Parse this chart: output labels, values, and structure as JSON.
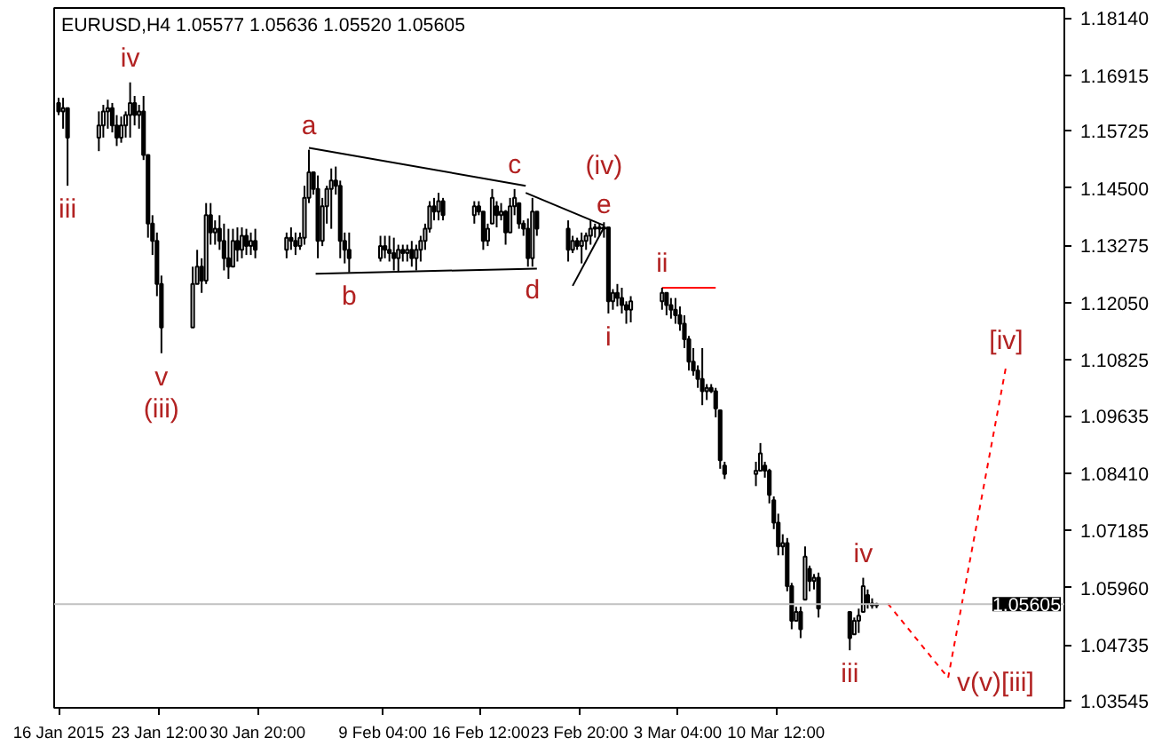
{
  "chart_data": {
    "type": "candlestick",
    "title": "EURUSD,H4  1.05577 1.05636 1.05520 1.05605",
    "x": [
      "2015-01-16T00:00",
      "2015-01-16T08:00",
      "2015-01-16T16:00",
      "2015-01-19T00:00",
      "2015-01-19T08:00",
      "2015-01-19T16:00",
      "2015-01-20T00:00",
      "2015-01-20T08:00",
      "2015-01-20T16:00",
      "2015-01-21T00:00",
      "2015-01-21T08:00",
      "2015-01-21T16:00",
      "2015-01-22T00:00",
      "2015-01-22T08:00",
      "2015-01-22T16:00",
      "2015-01-23T00:00",
      "2015-01-23T08:00",
      "2015-01-23T16:00",
      "2015-01-26T00:00",
      "2015-01-26T08:00",
      "2015-01-26T16:00",
      "2015-01-27T00:00",
      "2015-01-27T08:00",
      "2015-01-27T16:00",
      "2015-01-28T00:00",
      "2015-01-28T08:00",
      "2015-01-28T16:00",
      "2015-01-29T00:00",
      "2015-01-29T08:00",
      "2015-01-29T16:00",
      "2015-01-30T00:00",
      "2015-01-30T08:00",
      "2015-01-30T16:00",
      "2015-02-02T00:00",
      "2015-02-02T08:00",
      "2015-02-02T16:00",
      "2015-02-03T00:00",
      "2015-02-03T08:00",
      "2015-02-03T16:00",
      "2015-02-04T00:00",
      "2015-02-04T08:00",
      "2015-02-04T16:00",
      "2015-02-05T00:00",
      "2015-02-05T08:00",
      "2015-02-05T16:00",
      "2015-02-06T00:00",
      "2015-02-06T08:00",
      "2015-02-06T16:00",
      "2015-02-09T00:00",
      "2015-02-09T08:00",
      "2015-02-09T16:00",
      "2015-02-10T00:00",
      "2015-02-10T08:00",
      "2015-02-10T16:00",
      "2015-02-11T00:00",
      "2015-02-11T08:00",
      "2015-02-11T16:00",
      "2015-02-12T00:00",
      "2015-02-12T08:00",
      "2015-02-12T16:00",
      "2015-02-13T00:00",
      "2015-02-13T08:00",
      "2015-02-13T16:00",
      "2015-02-16T00:00",
      "2015-02-16T08:00",
      "2015-02-16T16:00",
      "2015-02-17T00:00",
      "2015-02-17T08:00",
      "2015-02-17T16:00",
      "2015-02-18T00:00",
      "2015-02-18T08:00",
      "2015-02-18T16:00",
      "2015-02-19T00:00",
      "2015-02-19T08:00",
      "2015-02-19T16:00",
      "2015-02-20T00:00",
      "2015-02-20T08:00",
      "2015-02-20T16:00",
      "2015-02-23T00:00",
      "2015-02-23T08:00",
      "2015-02-23T16:00",
      "2015-02-24T00:00",
      "2015-02-24T08:00",
      "2015-02-24T16:00",
      "2015-02-25T00:00",
      "2015-02-25T08:00",
      "2015-02-25T16:00",
      "2015-02-26T00:00",
      "2015-02-26T08:00",
      "2015-02-26T16:00",
      "2015-02-27T00:00",
      "2015-02-27T08:00",
      "2015-02-27T16:00",
      "2015-03-02T00:00",
      "2015-03-02T08:00",
      "2015-03-02T16:00",
      "2015-03-03T00:00",
      "2015-03-03T08:00",
      "2015-03-03T16:00",
      "2015-03-04T00:00",
      "2015-03-04T08:00",
      "2015-03-04T16:00",
      "2015-03-05T00:00",
      "2015-03-05T08:00",
      "2015-03-05T16:00",
      "2015-03-06T00:00",
      "2015-03-06T08:00",
      "2015-03-06T16:00",
      "2015-03-09T00:00",
      "2015-03-09T08:00",
      "2015-03-09T16:00",
      "2015-03-10T00:00",
      "2015-03-10T08:00",
      "2015-03-10T16:00",
      "2015-03-11T00:00",
      "2015-03-11T08:00",
      "2015-03-11T16:00",
      "2015-03-12T00:00",
      "2015-03-12T08:00",
      "2015-03-12T16:00",
      "2015-03-13T00:00",
      "2015-03-13T08:00",
      "2015-03-13T16:00",
      "2015-03-16T00:00",
      "2015-03-16T08:00",
      "2015-03-16T16:00",
      "2015-03-17T00:00",
      "2015-03-17T08:00",
      "2015-03-17T16:00",
      "2015-03-18T00:00"
    ],
    "ohlc": [
      [
        1.1632,
        1.1643,
        1.1606,
        1.1614
      ],
      [
        1.1614,
        1.1643,
        1.1577,
        1.1621
      ],
      [
        1.1621,
        1.1621,
        1.1455,
        1.1558
      ],
      [
        1.1558,
        1.1614,
        1.1529,
        1.1584
      ],
      [
        1.1584,
        1.1628,
        1.1558,
        1.1614
      ],
      [
        1.1614,
        1.1639,
        1.1577,
        1.1621
      ],
      [
        1.1621,
        1.1632,
        1.1569,
        1.1584
      ],
      [
        1.1584,
        1.1606,
        1.154,
        1.1558
      ],
      [
        1.1558,
        1.1603,
        1.1547,
        1.1584
      ],
      [
        1.1584,
        1.1614,
        1.1558,
        1.1606
      ],
      [
        1.1606,
        1.1676,
        1.1558,
        1.1632
      ],
      [
        1.1632,
        1.1647,
        1.1584,
        1.1606
      ],
      [
        1.1606,
        1.1628,
        1.1577,
        1.1614
      ],
      [
        1.1614,
        1.1647,
        1.151,
        1.1521
      ],
      [
        1.1521,
        1.1521,
        1.1344,
        1.1374
      ],
      [
        1.1374,
        1.1392,
        1.1307,
        1.1337
      ],
      [
        1.1337,
        1.1355,
        1.1219,
        1.1245
      ],
      [
        1.1245,
        1.1263,
        1.1097,
        1.1152
      ],
      [
        1.1152,
        1.1282,
        1.1152,
        1.1245
      ],
      [
        1.1245,
        1.1318,
        1.1245,
        1.1282
      ],
      [
        1.1282,
        1.13,
        1.1226,
        1.1252
      ],
      [
        1.1252,
        1.1418,
        1.1245,
        1.1392
      ],
      [
        1.1392,
        1.1418,
        1.1329,
        1.1355
      ],
      [
        1.1355,
        1.1381,
        1.1329,
        1.1363
      ],
      [
        1.1363,
        1.1392,
        1.1318,
        1.1337
      ],
      [
        1.1337,
        1.1374,
        1.1274,
        1.13
      ],
      [
        1.13,
        1.1363,
        1.1256,
        1.1282
      ],
      [
        1.1282,
        1.1363,
        1.1282,
        1.1337
      ],
      [
        1.1337,
        1.1366,
        1.1293,
        1.1318
      ],
      [
        1.1318,
        1.1366,
        1.13,
        1.1348
      ],
      [
        1.1348,
        1.1363,
        1.1307,
        1.1326
      ],
      [
        1.1326,
        1.1355,
        1.1307,
        1.1337
      ],
      [
        1.1337,
        1.1363,
        1.13,
        1.1318
      ],
      [
        1.1318,
        1.1355,
        1.13,
        1.1344
      ],
      [
        1.1344,
        1.1366,
        1.1318,
        1.1337
      ],
      [
        1.1337,
        1.1355,
        1.1307,
        1.1326
      ],
      [
        1.1326,
        1.1355,
        1.1318,
        1.1344
      ],
      [
        1.1344,
        1.1455,
        1.1329,
        1.1429
      ],
      [
        1.1429,
        1.1532,
        1.1418,
        1.1484
      ],
      [
        1.1484,
        1.1484,
        1.1436,
        1.1448
      ],
      [
        1.1448,
        1.1477,
        1.13,
        1.1337
      ],
      [
        1.1337,
        1.1429,
        1.1326,
        1.1411
      ],
      [
        1.1411,
        1.1455,
        1.1374,
        1.1448
      ],
      [
        1.1448,
        1.1492,
        1.1363,
        1.1466
      ],
      [
        1.1466,
        1.1496,
        1.1436,
        1.1455
      ],
      [
        1.1455,
        1.1466,
        1.13,
        1.1337
      ],
      [
        1.1337,
        1.1355,
        1.1289,
        1.1318
      ],
      [
        1.1318,
        1.1355,
        1.127,
        1.13
      ],
      [
        1.13,
        1.1348,
        1.1293,
        1.1326
      ],
      [
        1.1326,
        1.1348,
        1.13,
        1.1318
      ],
      [
        1.1318,
        1.1348,
        1.1293,
        1.1311
      ],
      [
        1.1311,
        1.1344,
        1.1274,
        1.13
      ],
      [
        1.13,
        1.1329,
        1.127,
        1.1318
      ],
      [
        1.1318,
        1.1329,
        1.1293,
        1.1311
      ],
      [
        1.1311,
        1.1329,
        1.1293,
        1.1318
      ],
      [
        1.1318,
        1.1337,
        1.1282,
        1.13
      ],
      [
        1.13,
        1.1329,
        1.1274,
        1.1318
      ],
      [
        1.1318,
        1.1348,
        1.1293,
        1.1337
      ],
      [
        1.1337,
        1.1374,
        1.1318,
        1.1363
      ],
      [
        1.1363,
        1.1422,
        1.1355,
        1.1411
      ],
      [
        1.1411,
        1.1429,
        1.1381,
        1.14
      ],
      [
        1.14,
        1.144,
        1.1381,
        1.1422
      ],
      [
        1.1422,
        1.1429,
        1.1381,
        1.1392
      ],
      [
        1.1392,
        1.1422,
        1.1374,
        1.1411
      ],
      [
        1.1411,
        1.1422,
        1.1392,
        1.14
      ],
      [
        1.14,
        1.14,
        1.1318,
        1.1337
      ],
      [
        1.1337,
        1.1374,
        1.1326,
        1.1363
      ],
      [
        1.1374,
        1.1448,
        1.1374,
        1.1429
      ],
      [
        1.1411,
        1.1422,
        1.1366,
        1.1392
      ],
      [
        1.1392,
        1.1418,
        1.1381,
        1.14
      ],
      [
        1.14,
        1.1403,
        1.1329,
        1.1355
      ],
      [
        1.1355,
        1.1429,
        1.1355,
        1.1411
      ],
      [
        1.1411,
        1.1448,
        1.1392,
        1.1429
      ],
      [
        1.1418,
        1.1418,
        1.1363,
        1.1374
      ],
      [
        1.1374,
        1.1381,
        1.1348,
        1.1363
      ],
      [
        1.1363,
        1.1385,
        1.1282,
        1.13
      ],
      [
        1.13,
        1.1429,
        1.1282,
        1.14
      ],
      [
        1.14,
        1.14,
        1.1348,
        1.1363
      ],
      [
        1.1363,
        1.1381,
        1.1293,
        1.1318
      ],
      [
        1.1318,
        1.1348,
        1.1311,
        1.1337
      ],
      [
        1.1337,
        1.1344,
        1.1318,
        1.1326
      ],
      [
        1.1326,
        1.1355,
        1.1289,
        1.1337
      ],
      [
        1.1337,
        1.1355,
        1.1318,
        1.1348
      ],
      [
        1.1348,
        1.1381,
        1.1329,
        1.1363
      ],
      [
        1.1363,
        1.1374,
        1.1344,
        1.1366
      ],
      [
        1.1366,
        1.1374,
        1.1348,
        1.1363
      ],
      [
        1.1363,
        1.1377,
        1.1344,
        1.1366
      ],
      [
        1.1366,
        1.1366,
        1.1182,
        1.1208
      ],
      [
        1.1208,
        1.1234,
        1.119,
        1.1226
      ],
      [
        1.1226,
        1.1245,
        1.1197,
        1.1215
      ],
      [
        1.1215,
        1.1237,
        1.1182,
        1.12
      ],
      [
        1.12,
        1.1208,
        1.116,
        1.119
      ],
      [
        1.119,
        1.1219,
        1.1163,
        1.1208
      ],
      [
        1.1208,
        1.1237,
        1.119,
        1.1226
      ],
      [
        1.1226,
        1.1226,
        1.1178,
        1.12
      ],
      [
        1.12,
        1.1215,
        1.1171,
        1.119
      ],
      [
        1.119,
        1.1215,
        1.116,
        1.1178
      ],
      [
        1.1178,
        1.1197,
        1.1145,
        1.116
      ],
      [
        1.116,
        1.1178,
        1.1108,
        1.1127
      ],
      [
        1.1127,
        1.1134,
        1.106,
        1.1079
      ],
      [
        1.1079,
        1.1108,
        1.1049,
        1.106
      ],
      [
        1.106,
        1.1071,
        1.1023,
        1.1042
      ],
      [
        1.1042,
        1.1108,
        1.0986,
        1.1016
      ],
      [
        1.1016,
        1.1031,
        1.0997,
        1.1023
      ],
      [
        1.1023,
        1.1031,
        1.1012,
        1.1016
      ],
      [
        1.1016,
        1.1023,
        1.096,
        1.0979
      ],
      [
        1.0975,
        1.0975,
        1.085,
        1.0868
      ],
      [
        1.0857,
        1.0865,
        1.0828,
        1.0839
      ],
      [
        1.0839,
        1.0865,
        1.0813,
        1.0846
      ],
      [
        1.0846,
        1.0905,
        1.0846,
        1.0883
      ],
      [
        1.0857,
        1.0865,
        1.0831,
        1.0846
      ],
      [
        1.0846,
        1.085,
        1.0776,
        1.0794
      ],
      [
        1.0783,
        1.0791,
        1.0721,
        1.0735
      ],
      [
        1.0735,
        1.0754,
        1.0665,
        1.0684
      ],
      [
        1.0684,
        1.071,
        1.0665,
        1.0691
      ],
      [
        1.0691,
        1.0702,
        1.0588,
        1.0599
      ],
      [
        1.0599,
        1.0606,
        1.0507,
        1.0525
      ],
      [
        1.0525,
        1.0555,
        1.0525,
        1.0544
      ],
      [
        1.0544,
        1.0555,
        1.0488,
        1.0507
      ],
      [
        1.057,
        1.0684,
        1.057,
        1.0662
      ],
      [
        1.0636,
        1.0643,
        1.0588,
        1.061
      ],
      [
        1.061,
        1.0625,
        1.0592,
        1.0617
      ],
      [
        1.0617,
        1.0628,
        1.0532,
        1.0551
      ],
      [
        1.0544,
        1.0544,
        1.0462,
        1.0488
      ],
      [
        1.0496,
        1.0532,
        1.0496,
        1.0525
      ],
      [
        1.0525,
        1.0551,
        1.0499,
        1.0536
      ],
      [
        1.0544,
        1.0617,
        1.0544,
        1.0599
      ],
      [
        1.058,
        1.0592,
        1.0551,
        1.0562
      ],
      [
        1.0562,
        1.0573,
        1.0551,
        1.0558
      ],
      [
        1.05577,
        1.05636,
        1.0552,
        1.05605
      ]
    ],
    "color": "#000000",
    "series": [
      {
        "type": "line",
        "color": "#000000",
        "line_style": "solid",
        "x": [
          "2015-02-03T16:00",
          "2015-02-19T20:00"
        ],
        "values": [
          1.1536,
          1.1455
        ]
      },
      {
        "type": "line",
        "color": "#000000",
        "line_style": "solid",
        "x": [
          "2015-02-19T20:00",
          "2015-02-25T16:00"
        ],
        "values": [
          1.144,
          1.137
        ]
      },
      {
        "type": "line",
        "color": "#000000",
        "line_style": "solid",
        "x": [
          "2015-02-04T04:00",
          "2015-02-20T16:00"
        ],
        "values": [
          1.1267,
          1.1278
        ]
      },
      {
        "type": "line",
        "color": "#000000",
        "line_style": "solid",
        "x": [
          "2015-02-23T08:00",
          "2015-02-25T16:00"
        ],
        "values": [
          1.1241,
          1.1366
        ]
      },
      {
        "type": "line",
        "color": "#ff0000",
        "line_style": "solid",
        "x": [
          "2015-03-02T00:00",
          "2015-03-06T00:00"
        ],
        "values": [
          1.1237,
          1.1237
        ]
      },
      {
        "type": "line",
        "color": "#ff0000",
        "line_style": "dashed",
        "x": [
          "2015-03-18T20:00",
          "2015-03-23T08:00",
          "2015-03-27T16:00"
        ],
        "values": [
          1.0562,
          1.0403,
          1.1071
        ]
      }
    ],
    "annotations": [
      {
        "text": "iv",
        "x": "2015-01-21T08:00",
        "y": 1.1676
      },
      {
        "text": "iii",
        "x": "2015-01-16T16:00",
        "y": 1.1455
      },
      {
        "text": "v",
        "x": "2015-01-23T16:00",
        "y": 1.1097
      },
      {
        "text": "(iii)",
        "x": "2015-01-23T16:00",
        "y": 1.1097
      },
      {
        "text": "a",
        "x": "2015-02-03T16:00",
        "y": 1.1532
      },
      {
        "text": "b",
        "x": "2015-02-06T16:00",
        "y": 1.127
      },
      {
        "text": "c",
        "x": "2015-02-19T00:00",
        "y": 1.1448
      },
      {
        "text": "d",
        "x": "2015-02-20T08:00",
        "y": 1.1282
      },
      {
        "text": "e",
        "x": "2015-02-25T16:00",
        "y": 1.1377
      },
      {
        "text": "(iv)",
        "x": "2015-02-25T16:00",
        "y": 1.1377
      },
      {
        "text": "i",
        "x": "2015-02-26T00:00",
        "y": 1.1182
      },
      {
        "text": "ii",
        "x": "2015-03-02T00:00",
        "y": 1.1237
      },
      {
        "text": "iv",
        "x": "2015-03-17T00:00",
        "y": 1.0617
      },
      {
        "text": "iii",
        "x": "2015-03-16T00:00",
        "y": 1.0462
      },
      {
        "text": "v(v)[iii]",
        "x": "2015-03-23T08:00",
        "y": 1.0403
      },
      {
        "text": "[iv]",
        "x": "2015-03-27T16:00",
        "y": 1.1071
      }
    ],
    "ref_lines": [
      {
        "axis": "y",
        "value": 1.05605,
        "label": "1.05605",
        "color": "#c0c0c0"
      }
    ],
    "xlim": [
      "2015-01-15T16:00",
      "2015-04-01T00:00"
    ],
    "xticks": [
      {
        "value": "2015-01-16T00:00",
        "label": "16 Jan 2015"
      },
      {
        "value": "2015-01-23T12:00",
        "label": "23 Jan 12:00"
      },
      {
        "value": "2015-01-30T20:00",
        "label": "30 Jan 20:00"
      },
      {
        "value": "2015-02-09T04:00",
        "label": "9 Feb 04:00"
      },
      {
        "value": "2015-02-16T12:00",
        "label": "16 Feb 12:00"
      },
      {
        "value": "2015-02-23T20:00",
        "label": "23 Feb 20:00"
      },
      {
        "value": "2015-03-03T04:00",
        "label": "3 Mar 04:00"
      },
      {
        "value": "2015-03-10T12:00",
        "label": "10 Mar 12:00"
      }
    ],
    "ylim": [
      1.0339,
      1.1835
    ],
    "yticks": [
      {
        "value": 1.1814,
        "label": "1.18140"
      },
      {
        "value": 1.16915,
        "label": "1.16915"
      },
      {
        "value": 1.15725,
        "label": "1.15725"
      },
      {
        "value": 1.145,
        "label": "1.14500"
      },
      {
        "value": 1.13275,
        "label": "1.13275"
      },
      {
        "value": 1.1205,
        "label": "1.12050"
      },
      {
        "value": 1.10825,
        "label": "1.10825"
      },
      {
        "value": 1.09635,
        "label": "1.09635"
      },
      {
        "value": 1.0841,
        "label": "1.08410"
      },
      {
        "value": 1.07185,
        "label": "1.07185"
      },
      {
        "value": 1.0596,
        "label": "1.05960"
      },
      {
        "value": 1.04735,
        "label": "1.04735"
      },
      {
        "value": 1.03545,
        "label": "1.03545"
      }
    ]
  }
}
